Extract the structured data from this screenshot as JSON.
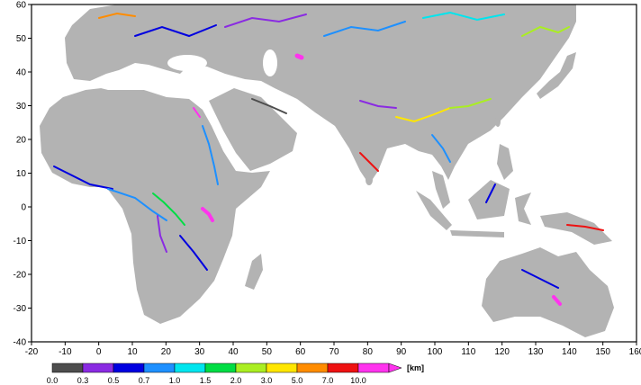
{
  "map": {
    "lon_range": [
      -20,
      160
    ],
    "lat_range": [
      -40,
      60
    ],
    "x_ticks": [
      "-20",
      "-10",
      "0",
      "10",
      "20",
      "30",
      "40",
      "50",
      "60",
      "70",
      "80",
      "90",
      "100",
      "110",
      "120",
      "130",
      "140",
      "150",
      "160"
    ],
    "y_ticks": [
      "60",
      "50",
      "40",
      "30",
      "20",
      "10",
      "0",
      "-10",
      "-20",
      "-30",
      "-40"
    ],
    "colors": {
      "land": "#b3b3b3",
      "ocean": "#ffffff",
      "frame": "#000000"
    }
  },
  "colorbar": {
    "labels": [
      "0.0",
      "0.3",
      "0.5",
      "0.7",
      "1.0",
      "1.5",
      "2.0",
      "3.0",
      "5.0",
      "7.0",
      "10.0"
    ],
    "colors": [
      "#4d4d4d",
      "#8a2be2",
      "#0000e0",
      "#1e90ff",
      "#00e5ee",
      "#00dd44",
      "#aaee22",
      "#ffe600",
      "#ff8c00",
      "#ee1111",
      "#ff33ee"
    ],
    "unit": "[km]"
  }
}
